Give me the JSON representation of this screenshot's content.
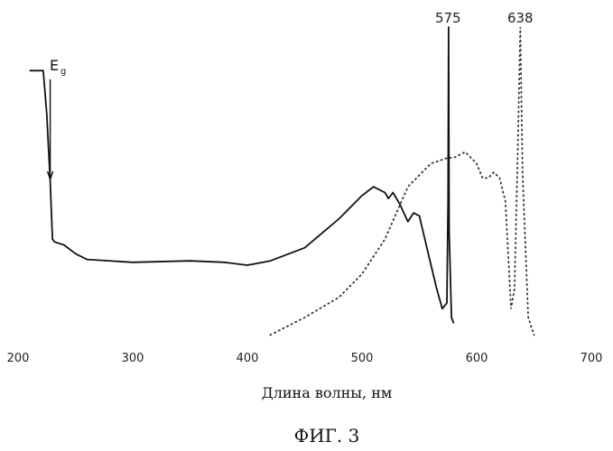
{
  "chart_data": {
    "type": "line",
    "xlabel": "Длина волны, нм",
    "ylabel": "",
    "title": "",
    "caption": "ФИГ. 3",
    "xlim": [
      200,
      700
    ],
    "x_ticks": [
      "200",
      "300",
      "400",
      "500",
      "600",
      "700"
    ],
    "y_axis_shown": false,
    "grid": false,
    "legend": "none",
    "annotations": {
      "band_gap": {
        "text": "E",
        "subscript": "g",
        "x": 228
      },
      "peaks": [
        {
          "text": "575",
          "x": 575
        },
        {
          "text": "638",
          "x": 638
        }
      ]
    },
    "series": [
      {
        "style": "solid",
        "color": "#111111",
        "x": [
          210,
          222,
          225,
          228,
          230,
          232,
          240,
          250,
          260,
          300,
          350,
          380,
          400,
          420,
          450,
          480,
          500,
          510,
          515,
          520,
          523,
          527,
          533,
          540,
          545,
          550,
          556,
          565,
          570,
          574,
          575,
          575.5,
          576,
          578,
          580
        ],
        "y": [
          0.85,
          0.85,
          0.7,
          0.47,
          0.27,
          0.26,
          0.25,
          0.22,
          0.2,
          0.19,
          0.195,
          0.19,
          0.18,
          0.195,
          0.24,
          0.34,
          0.42,
          0.45,
          0.44,
          0.43,
          0.41,
          0.43,
          0.39,
          0.33,
          0.36,
          0.35,
          0.25,
          0.1,
          0.03,
          0.05,
          0.4,
          1.0,
          0.3,
          0.0,
          -0.02
        ]
      },
      {
        "style": "dotted",
        "color": "#333333",
        "x": [
          420,
          450,
          480,
          500,
          520,
          540,
          560,
          575,
          580,
          590,
          600,
          605,
          610,
          615,
          620,
          625,
          630,
          633,
          636,
          638,
          640,
          645,
          650
        ],
        "y": [
          -0.06,
          0.0,
          0.07,
          0.15,
          0.27,
          0.45,
          0.53,
          0.55,
          0.55,
          0.57,
          0.53,
          0.48,
          0.48,
          0.5,
          0.48,
          0.4,
          0.03,
          0.1,
          0.6,
          1.0,
          0.5,
          0.0,
          -0.06
        ]
      }
    ]
  }
}
